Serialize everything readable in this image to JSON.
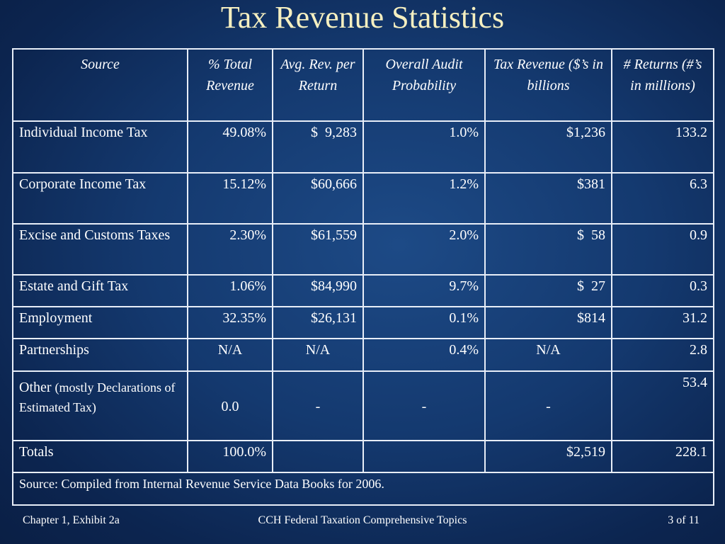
{
  "title": "Tax Revenue Statistics",
  "table": {
    "headers": [
      "Source",
      "% Total Revenue",
      "Avg. Rev. per Return",
      "Overall Audit Probability",
      "Tax Revenue ($’s in billions",
      "# Returns (#’s in millions)"
    ],
    "rows": [
      {
        "source": "Individual Income Tax",
        "pct": "49.08%",
        "avg": "$  9,283",
        "audit": "1.0%",
        "revenue": "$1,236",
        "returns": "133.2"
      },
      {
        "source": "Corporate Income Tax",
        "pct": "15.12%",
        "avg": "$60,666",
        "audit": "1.2%",
        "revenue": "$381",
        "returns": "6.3"
      },
      {
        "source": "Excise and Customs Taxes",
        "pct": "2.30%",
        "avg": "$61,559",
        "audit": "2.0%",
        "revenue": "$  58",
        "returns": "0.9"
      },
      {
        "source": "Estate and Gift Tax",
        "pct": "1.06%",
        "avg": "$84,990",
        "audit": "9.7%",
        "revenue": "$  27",
        "returns": "0.3"
      },
      {
        "source": "Employment",
        "pct": "32.35%",
        "avg": "$26,131",
        "audit": "0.1%",
        "revenue": "$814",
        "returns": "31.2"
      },
      {
        "source": "Partnerships",
        "pct": "N/A",
        "avg": "N/A",
        "audit": "0.4%",
        "revenue": "N/A",
        "returns": "2.8"
      },
      {
        "source_main": "Other",
        "source_small": "(mostly Declarations of Estimated Tax)",
        "pct": "0.0",
        "avg": "-",
        "audit": "-",
        "revenue": "-",
        "returns": "53.4"
      },
      {
        "source": "Totals",
        "pct": "100.0%",
        "avg": "",
        "audit": "",
        "revenue": "$2,519",
        "returns": "228.1"
      }
    ],
    "note": "Source:  Compiled from Internal Revenue Service Data Books for 2006."
  },
  "footer": {
    "left": "Chapter 1, Exhibit 2a",
    "center": "CCH Federal Taxation Comprehensive Topics",
    "right": "3 of 11"
  }
}
